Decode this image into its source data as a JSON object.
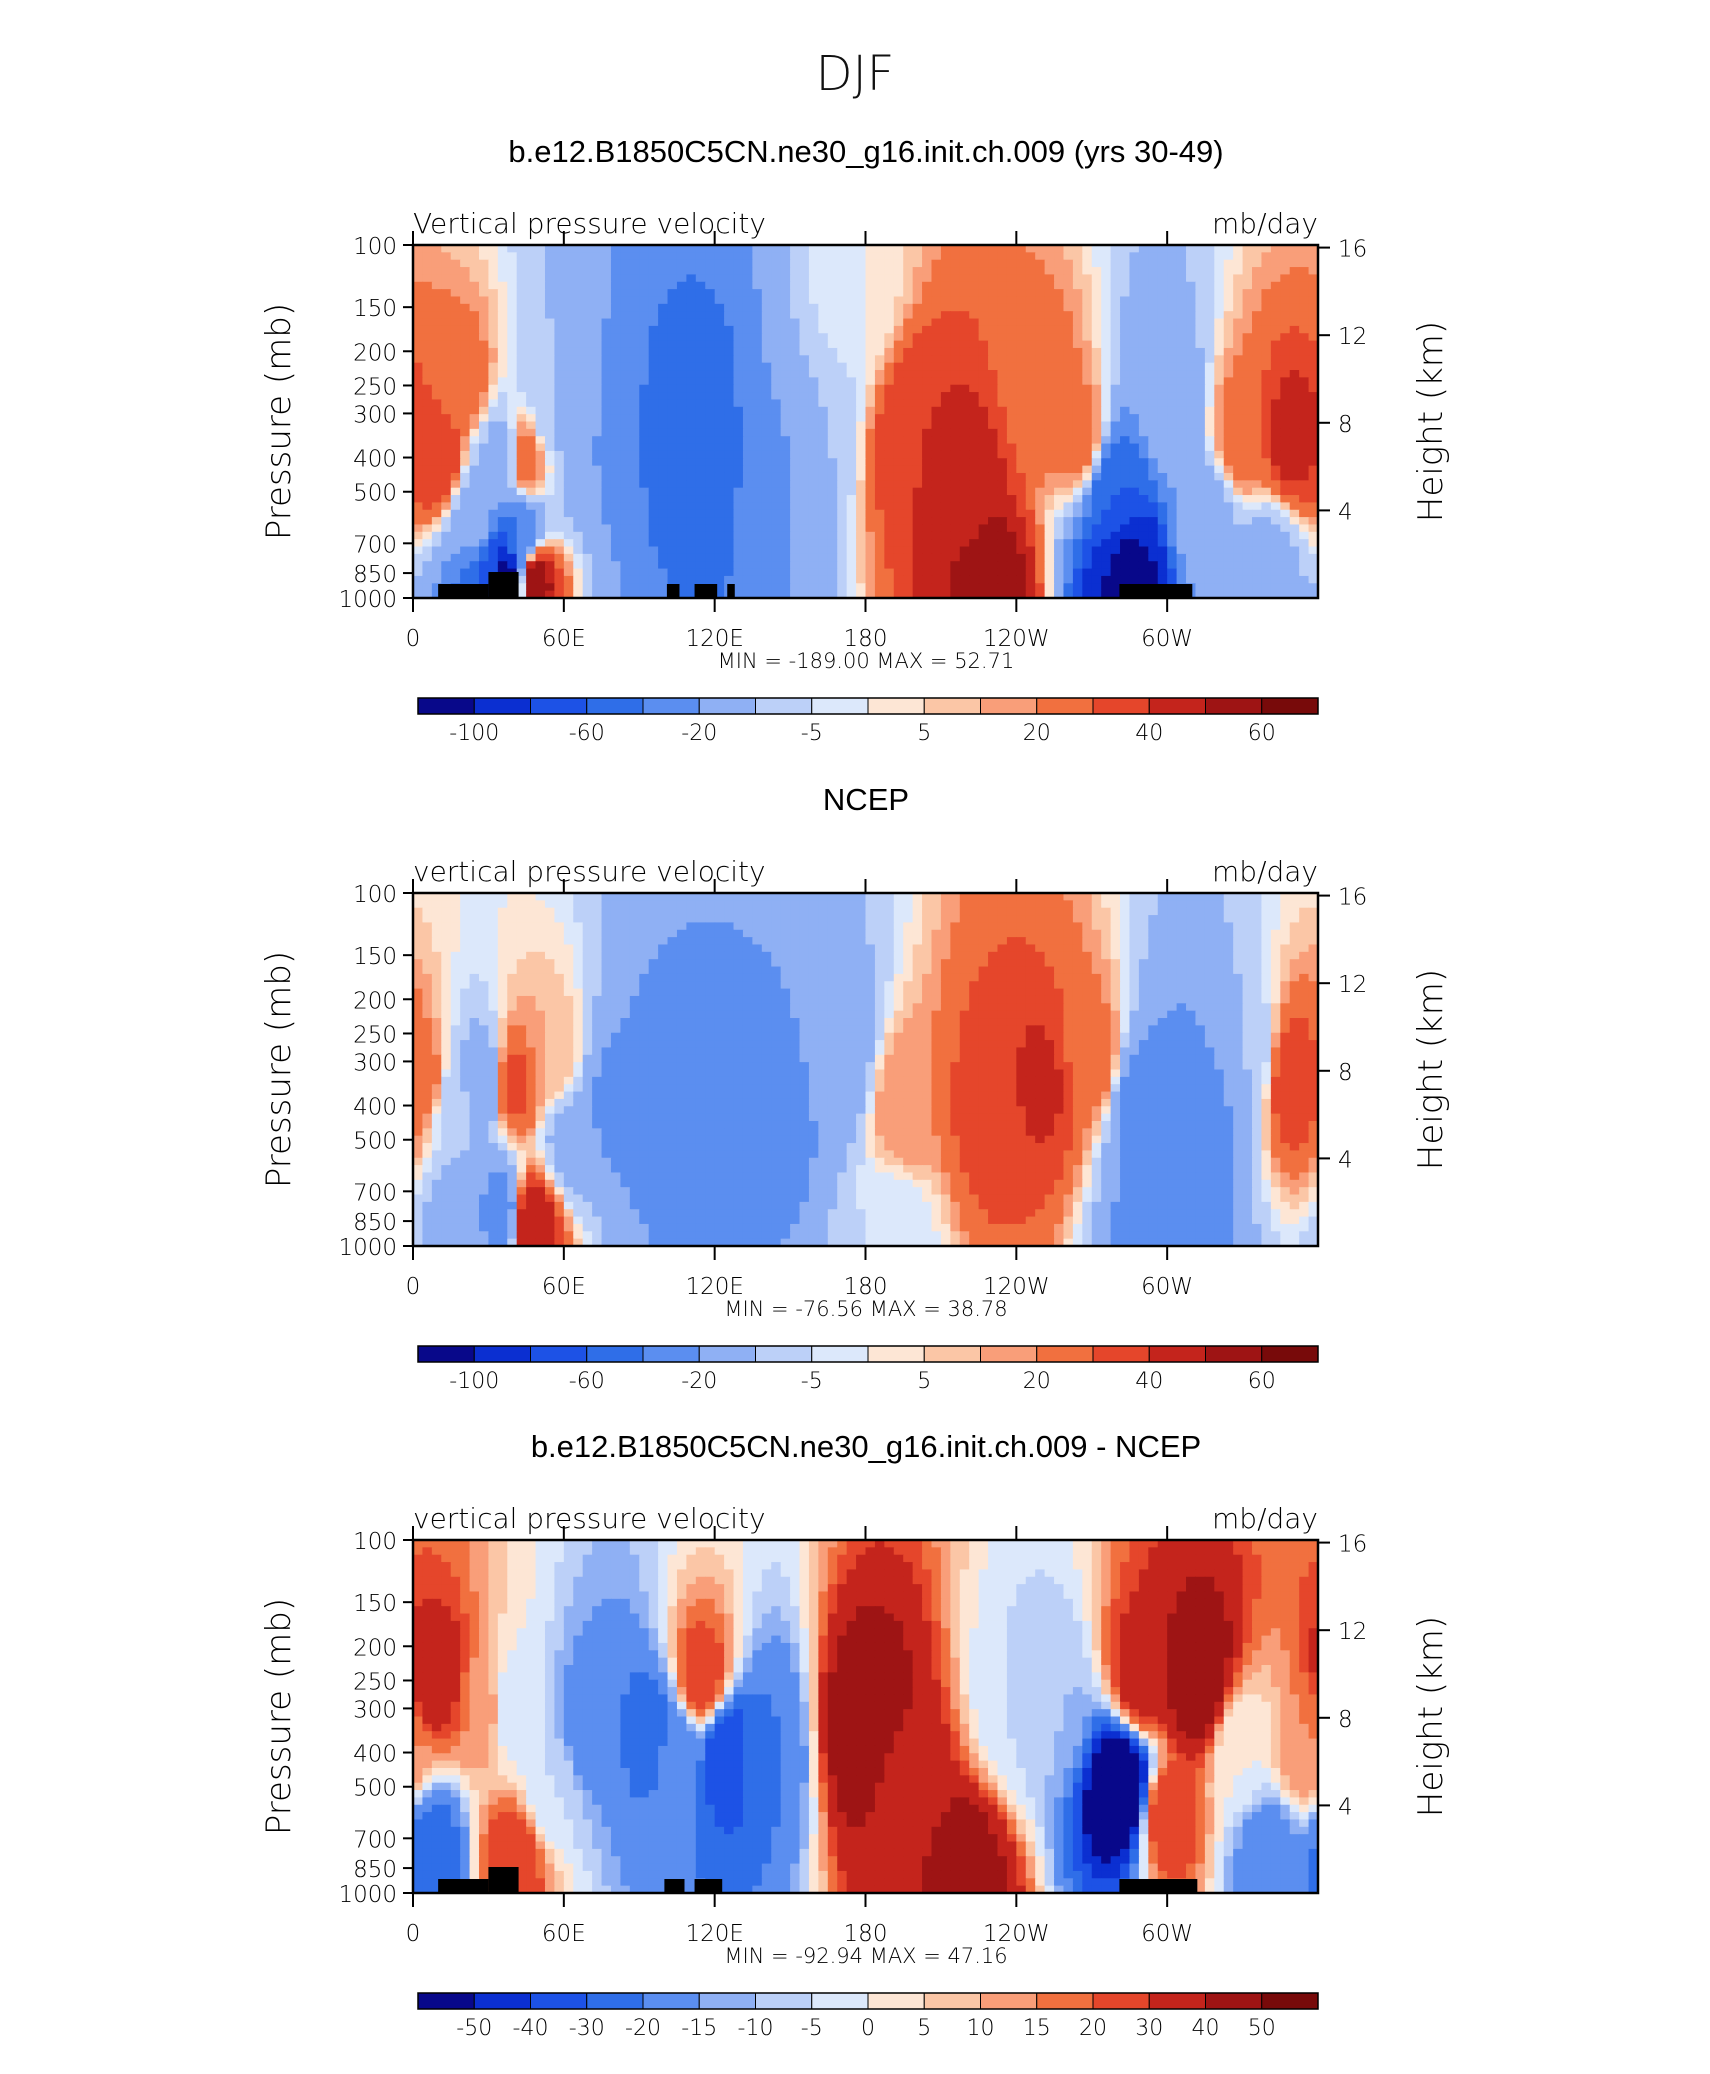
{
  "figure": {
    "title": "DJF"
  },
  "colors": {
    "ramp_13": [
      "#08088a",
      "#0b2fd1",
      "#1d52e6",
      "#2f6ee8",
      "#5b8ef0",
      "#8fb0f4",
      "#bcd0f8",
      "#dce8fb",
      "#fde6d5",
      "#fbc6a6",
      "#f99e79",
      "#f1703f",
      "#e5462b",
      "#c4241c",
      "#9e1414",
      "#780a0a"
    ],
    "ramp_17": [
      "#08088a",
      "#0b2fd1",
      "#1d52e6",
      "#2f6ee8",
      "#5b8ef0",
      "#8fb0f4",
      "#bcd0f8",
      "#dce8fb",
      "#fde6d5",
      "#fbc6a6",
      "#f99e79",
      "#f1703f",
      "#e5462b",
      "#c4241c",
      "#9e1414",
      "#780a0a"
    ]
  },
  "chart_data": [
    {
      "type": "heatmap",
      "title": "b.e12.B1850C5CN.ne30_g16.init.ch.009 (yrs 30-49)",
      "left_label": "Vertical pressure velocity",
      "right_label": "mb/day",
      "ylabel": "Pressure (mb)",
      "y2label": "Height (km)",
      "yticks": [
        "100",
        "150",
        "200",
        "250",
        "300",
        "400",
        "500",
        "700",
        "850",
        "1000"
      ],
      "ytick_values": [
        100,
        150,
        200,
        250,
        300,
        400,
        500,
        700,
        850,
        1000
      ],
      "y2ticks": [
        "16",
        "12",
        "8",
        "4"
      ],
      "y2tick_values": [
        16,
        12,
        8,
        4
      ],
      "xticks": [
        "0",
        "60E",
        "120E",
        "180",
        "120W",
        "60W"
      ],
      "xtick_values": [
        0,
        60,
        120,
        180,
        240,
        300
      ],
      "xlim": [
        0,
        360
      ],
      "ylim": [
        1000,
        100
      ],
      "stats": "MIN = -189.00   MAX =   52.71",
      "colorbar_labels": [
        "-100",
        "-60",
        "-20",
        "-5",
        "5",
        "20",
        "40",
        "60"
      ],
      "colorbar_bins": 16,
      "field": [
        {
          "lon": 10,
          "pr": 400,
          "v": 30
        },
        {
          "lon": 20,
          "pr": 250,
          "v": 15
        },
        {
          "lon": 25,
          "pr": 600,
          "v": -30
        },
        {
          "lon": 30,
          "pr": 900,
          "v": -80
        },
        {
          "lon": 35,
          "pr": 400,
          "v": -25
        },
        {
          "lon": 37,
          "pr": 850,
          "v": -150
        },
        {
          "lon": 42,
          "pr": 700,
          "v": -60
        },
        {
          "lon": 45,
          "pr": 400,
          "v": 15
        },
        {
          "lon": 48,
          "pr": 900,
          "v": 50
        },
        {
          "lon": 55,
          "pr": 300,
          "v": -20
        },
        {
          "lon": 70,
          "pr": 350,
          "v": -40
        },
        {
          "lon": 90,
          "pr": 350,
          "v": -60
        },
        {
          "lon": 110,
          "pr": 350,
          "v": -80
        },
        {
          "lon": 120,
          "pr": 400,
          "v": -70
        },
        {
          "lon": 140,
          "pr": 400,
          "v": -45
        },
        {
          "lon": 160,
          "pr": 300,
          "v": -20
        },
        {
          "lon": 175,
          "pr": 150,
          "v": -5
        },
        {
          "lon": 200,
          "pr": 350,
          "v": 30
        },
        {
          "lon": 220,
          "pr": 450,
          "v": 35
        },
        {
          "lon": 230,
          "pr": 900,
          "v": 45
        },
        {
          "lon": 250,
          "pr": 250,
          "v": 15
        },
        {
          "lon": 265,
          "pr": 350,
          "v": 15
        },
        {
          "lon": 280,
          "pr": 500,
          "v": -80
        },
        {
          "lon": 285,
          "pr": 850,
          "v": -150
        },
        {
          "lon": 300,
          "pr": 300,
          "v": -30
        },
        {
          "lon": 315,
          "pr": 600,
          "v": -30
        },
        {
          "lon": 330,
          "pr": 350,
          "v": 15
        },
        {
          "lon": 350,
          "pr": 350,
          "v": 35
        },
        {
          "lon": 340,
          "pr": 800,
          "v": -25
        }
      ],
      "land": [
        [
          10,
          30
        ],
        [
          30,
          42
        ],
        [
          101,
          106
        ],
        [
          112,
          121
        ],
        [
          125,
          128
        ],
        [
          281,
          310
        ]
      ]
    },
    {
      "type": "heatmap",
      "title": "NCEP",
      "left_label": "vertical pressure velocity",
      "right_label": "mb/day",
      "ylabel": "Pressure (mb)",
      "y2label": "Height (km)",
      "yticks": [
        "100",
        "150",
        "200",
        "250",
        "300",
        "400",
        "500",
        "700",
        "850",
        "1000"
      ],
      "ytick_values": [
        100,
        150,
        200,
        250,
        300,
        400,
        500,
        700,
        850,
        1000
      ],
      "y2ticks": [
        "16",
        "12",
        "8",
        "4"
      ],
      "y2tick_values": [
        16,
        12,
        8,
        4
      ],
      "xticks": [
        "0",
        "60E",
        "120E",
        "180",
        "120W",
        "60W"
      ],
      "xtick_values": [
        0,
        60,
        120,
        180,
        240,
        300
      ],
      "xlim": [
        0,
        360
      ],
      "ylim": [
        1000,
        100
      ],
      "stats": "MIN = -76.56   MAX =   38.78",
      "colorbar_labels": [
        "-100",
        "-60",
        "-20",
        "-5",
        "5",
        "20",
        "40",
        "60"
      ],
      "colorbar_bins": 16,
      "field": [
        {
          "lon": 5,
          "pr": 350,
          "v": 15
        },
        {
          "lon": 15,
          "pr": 400,
          "v": -15
        },
        {
          "lon": 20,
          "pr": 800,
          "v": -30
        },
        {
          "lon": 28,
          "pr": 350,
          "v": -35
        },
        {
          "lon": 35,
          "pr": 800,
          "v": -50
        },
        {
          "lon": 40,
          "pr": 350,
          "v": 25
        },
        {
          "lon": 47,
          "pr": 850,
          "v": 40
        },
        {
          "lon": 55,
          "pr": 300,
          "v": 5
        },
        {
          "lon": 62,
          "pr": 500,
          "v": -25
        },
        {
          "lon": 80,
          "pr": 400,
          "v": -45
        },
        {
          "lon": 100,
          "pr": 400,
          "v": -55
        },
        {
          "lon": 120,
          "pr": 400,
          "v": -40
        },
        {
          "lon": 145,
          "pr": 400,
          "v": -50
        },
        {
          "lon": 170,
          "pr": 300,
          "v": -30
        },
        {
          "lon": 195,
          "pr": 400,
          "v": 10
        },
        {
          "lon": 230,
          "pr": 400,
          "v": 25
        },
        {
          "lon": 250,
          "pr": 350,
          "v": 32
        },
        {
          "lon": 270,
          "pr": 300,
          "v": 15
        },
        {
          "lon": 290,
          "pr": 400,
          "v": -50
        },
        {
          "lon": 300,
          "pr": 800,
          "v": -55
        },
        {
          "lon": 315,
          "pr": 400,
          "v": -55
        },
        {
          "lon": 330,
          "pr": 300,
          "v": -20
        },
        {
          "lon": 352,
          "pr": 350,
          "v": 30
        },
        {
          "lon": 190,
          "pr": 900,
          "v": -10
        }
      ],
      "land": []
    },
    {
      "type": "heatmap",
      "title": "b.e12.B1850C5CN.ne30_g16.init.ch.009 - NCEP",
      "left_label": "vertical pressure velocity",
      "right_label": "mb/day",
      "ylabel": "Pressure (mb)",
      "y2label": "Height (km)",
      "yticks": [
        "100",
        "150",
        "200",
        "250",
        "300",
        "400",
        "500",
        "700",
        "850",
        "1000"
      ],
      "ytick_values": [
        100,
        150,
        200,
        250,
        300,
        400,
        500,
        700,
        850,
        1000
      ],
      "y2ticks": [
        "16",
        "12",
        "8",
        "4"
      ],
      "y2tick_values": [
        16,
        12,
        8,
        4
      ],
      "xticks": [
        "0",
        "60E",
        "120E",
        "180",
        "120W",
        "60W"
      ],
      "xtick_values": [
        0,
        60,
        120,
        180,
        240,
        300
      ],
      "xlim": [
        0,
        360
      ],
      "ylim": [
        1000,
        100
      ],
      "stats": "MIN = -92.94   MAX =   47.16",
      "colorbar_labels": [
        "-50",
        "-40",
        "-30",
        "-20",
        "-15",
        "-10",
        "-5",
        "0",
        "5",
        "10",
        "15",
        "20",
        "30",
        "40",
        "50"
      ],
      "colorbar_bins": 16,
      "field": [
        {
          "lon": 10,
          "pr": 250,
          "v": 25
        },
        {
          "lon": 8,
          "pr": 750,
          "v": -35
        },
        {
          "lon": 28,
          "pr": 300,
          "v": 10
        },
        {
          "lon": 38,
          "pr": 300,
          "v": -10
        },
        {
          "lon": 40,
          "pr": 800,
          "v": 20
        },
        {
          "lon": 55,
          "pr": 500,
          "v": -10
        },
        {
          "lon": 70,
          "pr": 350,
          "v": -25
        },
        {
          "lon": 95,
          "pr": 350,
          "v": -35
        },
        {
          "lon": 105,
          "pr": 400,
          "v": -25
        },
        {
          "lon": 115,
          "pr": 250,
          "v": 20
        },
        {
          "lon": 125,
          "pr": 400,
          "v": -50
        },
        {
          "lon": 140,
          "pr": 400,
          "v": -30
        },
        {
          "lon": 180,
          "pr": 350,
          "v": 40
        },
        {
          "lon": 195,
          "pr": 500,
          "v": 25
        },
        {
          "lon": 220,
          "pr": 880,
          "v": 35
        },
        {
          "lon": 240,
          "pr": 300,
          "v": -10
        },
        {
          "lon": 255,
          "pr": 300,
          "v": -15
        },
        {
          "lon": 282,
          "pr": 500,
          "v": -80
        },
        {
          "lon": 290,
          "pr": 250,
          "v": 25
        },
        {
          "lon": 300,
          "pr": 600,
          "v": 20
        },
        {
          "lon": 312,
          "pr": 250,
          "v": 40
        },
        {
          "lon": 330,
          "pr": 400,
          "v": -5
        },
        {
          "lon": 340,
          "pr": 750,
          "v": -25
        },
        {
          "lon": 355,
          "pr": 400,
          "v": 10
        }
      ],
      "land": [
        [
          10,
          30
        ],
        [
          30,
          42
        ],
        [
          100,
          108
        ],
        [
          112,
          123
        ],
        [
          281,
          312
        ]
      ]
    }
  ]
}
